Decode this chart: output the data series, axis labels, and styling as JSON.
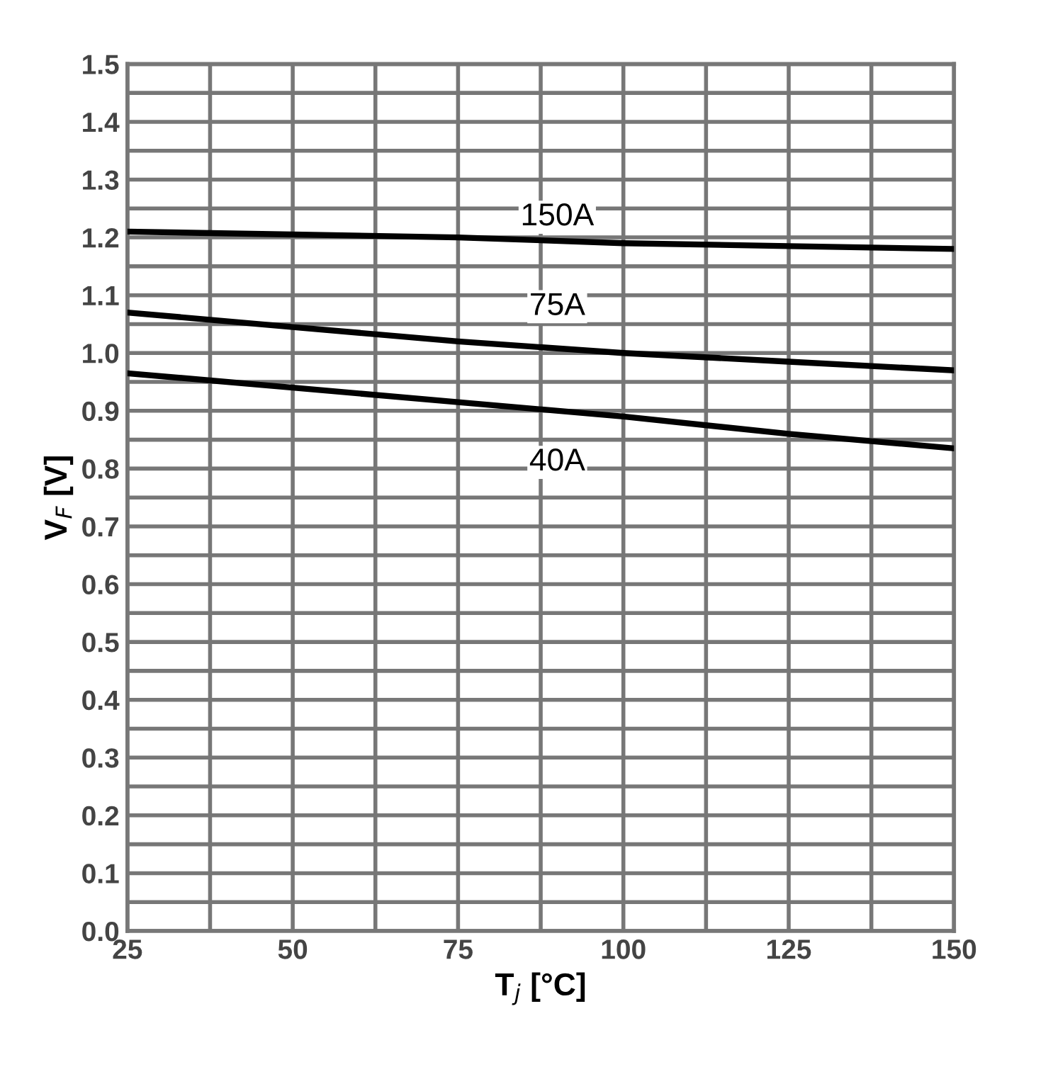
{
  "chart_data": {
    "type": "line",
    "xlabel": "T$_{j}$ [°C]",
    "ylabel": "V$_{F}$ [V]",
    "x": [
      25,
      50,
      75,
      100,
      125,
      150
    ],
    "series": [
      {
        "name": "150A",
        "color": "#000000",
        "values": [
          1.21,
          1.205,
          1.2,
          1.19,
          1.185,
          1.18
        ]
      },
      {
        "name": "75A",
        "color": "#000000",
        "values": [
          1.07,
          1.045,
          1.02,
          1.0,
          0.985,
          0.97
        ]
      },
      {
        "name": "40A",
        "color": "#000000",
        "values": [
          0.965,
          0.94,
          0.915,
          0.89,
          0.86,
          0.835
        ]
      }
    ],
    "xlim": [
      25,
      150
    ],
    "xticks": [
      25,
      {
        "value": 37.5,
        "label": null
      },
      50,
      {
        "value": 62.5,
        "label": null
      },
      75,
      {
        "value": 87.5,
        "label": null
      },
      100,
      {
        "value": 112.5,
        "label": null
      },
      125,
      {
        "value": 137.5,
        "label": null
      },
      150
    ],
    "ylim": [
      0,
      1.5
    ],
    "yticks": [
      {
        "value": 0,
        "label": "0.0"
      },
      {
        "value": 0.05,
        "label": null
      },
      0.1,
      {
        "value": 0.15,
        "label": null
      },
      0.2,
      {
        "value": 0.25,
        "label": null
      },
      0.3,
      {
        "value": 0.35,
        "label": null
      },
      0.4,
      {
        "value": 0.45,
        "label": null
      },
      0.5,
      {
        "value": 0.55,
        "label": null
      },
      0.6,
      {
        "value": 0.65,
        "label": null
      },
      0.7,
      {
        "value": 0.75,
        "label": null
      },
      0.8,
      {
        "value": 0.85,
        "label": null
      },
      0.9,
      {
        "value": 0.95,
        "label": null
      },
      {
        "value": 1.0,
        "label": "1.0"
      },
      {
        "value": 1.05,
        "label": null
      },
      1.1,
      {
        "value": 1.15,
        "label": null
      },
      1.2,
      {
        "value": 1.25,
        "label": null
      },
      1.3,
      {
        "value": 1.35,
        "label": null
      },
      1.4,
      {
        "value": 1.45,
        "label": null
      },
      1.5
    ],
    "grid": true,
    "line_style": "solid",
    "marker": "none",
    "legend": false
  }
}
